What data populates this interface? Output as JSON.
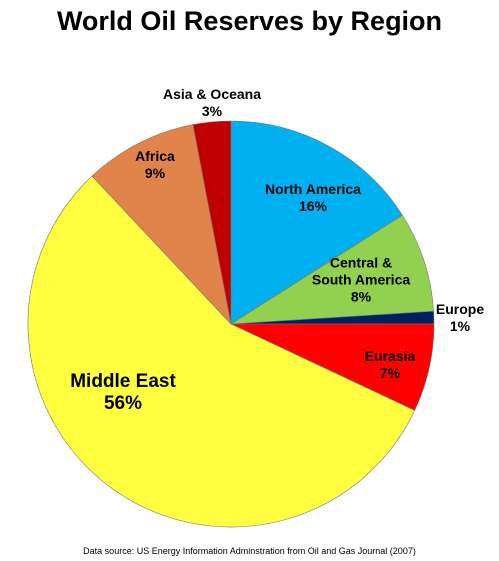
{
  "chart_data": {
    "type": "pie",
    "title": "World Oil Reserves by Region",
    "categories": [
      "North America",
      "Central & South America",
      "Europe",
      "Eurasia",
      "Middle East",
      "Africa",
      "Asia & Oceana"
    ],
    "values": [
      16,
      8,
      1,
      7,
      56,
      9,
      3
    ],
    "value_labels": [
      "16%",
      "8%",
      "1%",
      "7%",
      "56%",
      "9%",
      "3%"
    ],
    "colors": [
      "#00b0f0",
      "#92d050",
      "#002060",
      "#ff0000",
      "#ffff40",
      "#e0844c",
      "#c00000"
    ],
    "source": "Data source: US Energy Information Adminstration from  Oil and Gas Journal (2007)"
  }
}
